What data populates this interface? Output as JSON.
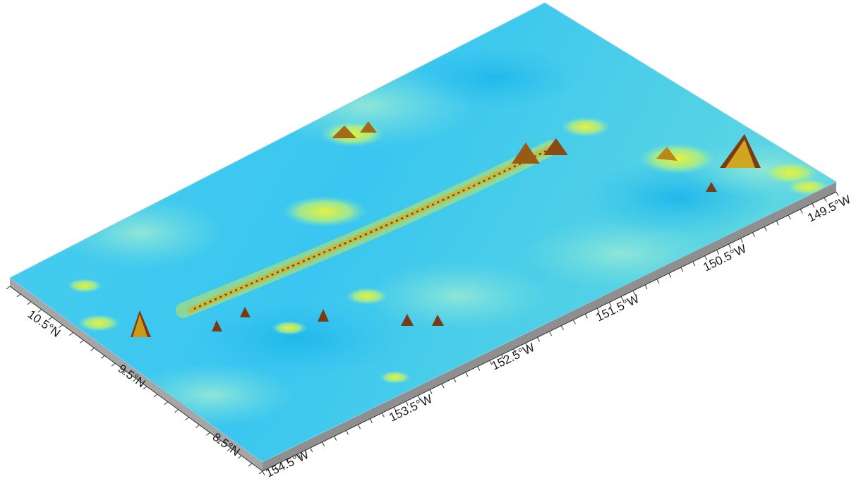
{
  "map": {
    "type": "3d-bathymetry-perspective",
    "colors": {
      "deep": "#33c8f0",
      "mid": "#9ff0c0",
      "shallow": "#e6f23a",
      "peak_high": "#d2b020",
      "peak_top": "#7a3a14",
      "base_side": "#a8a8a8"
    },
    "latitude_axis": {
      "side": "left",
      "labels": [
        "10.5°N",
        "9.5°N",
        "8.5°N"
      ]
    },
    "longitude_axis": {
      "side": "bottom",
      "labels": [
        "154.5°W",
        "153.5°W",
        "152.5°W",
        "151.5°W",
        "150.5°W",
        "149.5°W"
      ]
    }
  }
}
